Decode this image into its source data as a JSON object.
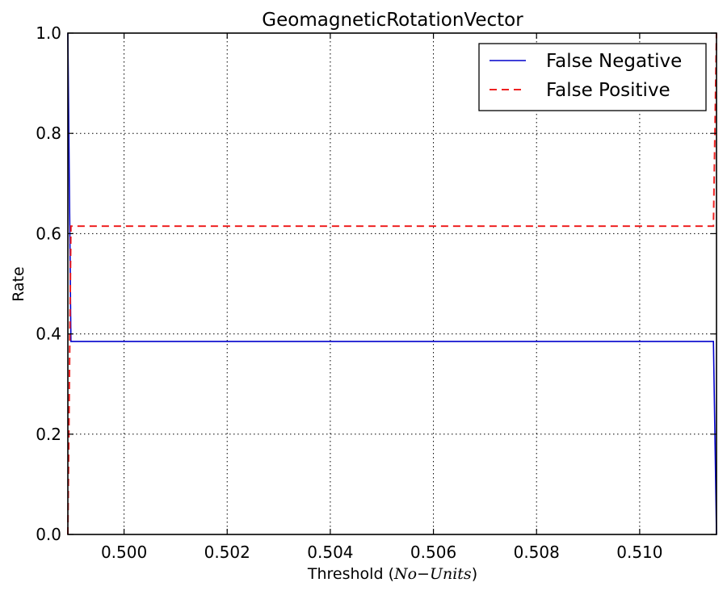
{
  "chart_data": {
    "type": "line",
    "title": "GeomagneticRotationVector",
    "xlabel": {
      "prefix": "Threshold ",
      "paren_open": "(",
      "math": "No−Units",
      "paren_close": ")"
    },
    "ylabel": "Rate",
    "xlim": [
      0.49891,
      0.51149
    ],
    "ylim": [
      0.0,
      1.0
    ],
    "x_ticks": [
      0.5,
      0.502,
      0.504,
      0.506,
      0.508,
      0.51
    ],
    "x_tick_labels": [
      "0.500",
      "0.502",
      "0.504",
      "0.506",
      "0.508",
      "0.510"
    ],
    "y_ticks": [
      0.0,
      0.2,
      0.4,
      0.6,
      0.8,
      1.0
    ],
    "y_tick_labels": [
      "0.0",
      "0.2",
      "0.4",
      "0.6",
      "0.8",
      "1.0"
    ],
    "grid": true,
    "legend_position": "top-right",
    "series": [
      {
        "name": "False Negative",
        "color": "#0000cc",
        "dash": "solid",
        "x": [
          0.49891,
          0.49897,
          0.51143,
          0.51149
        ],
        "y": [
          1.0,
          0.385,
          0.385,
          0.0
        ]
      },
      {
        "name": "False Positive",
        "color": "#ee2222",
        "dash": "dashed",
        "x": [
          0.49891,
          0.49897,
          0.51143,
          0.51149
        ],
        "y": [
          0.0,
          0.615,
          0.615,
          1.0
        ]
      }
    ]
  }
}
